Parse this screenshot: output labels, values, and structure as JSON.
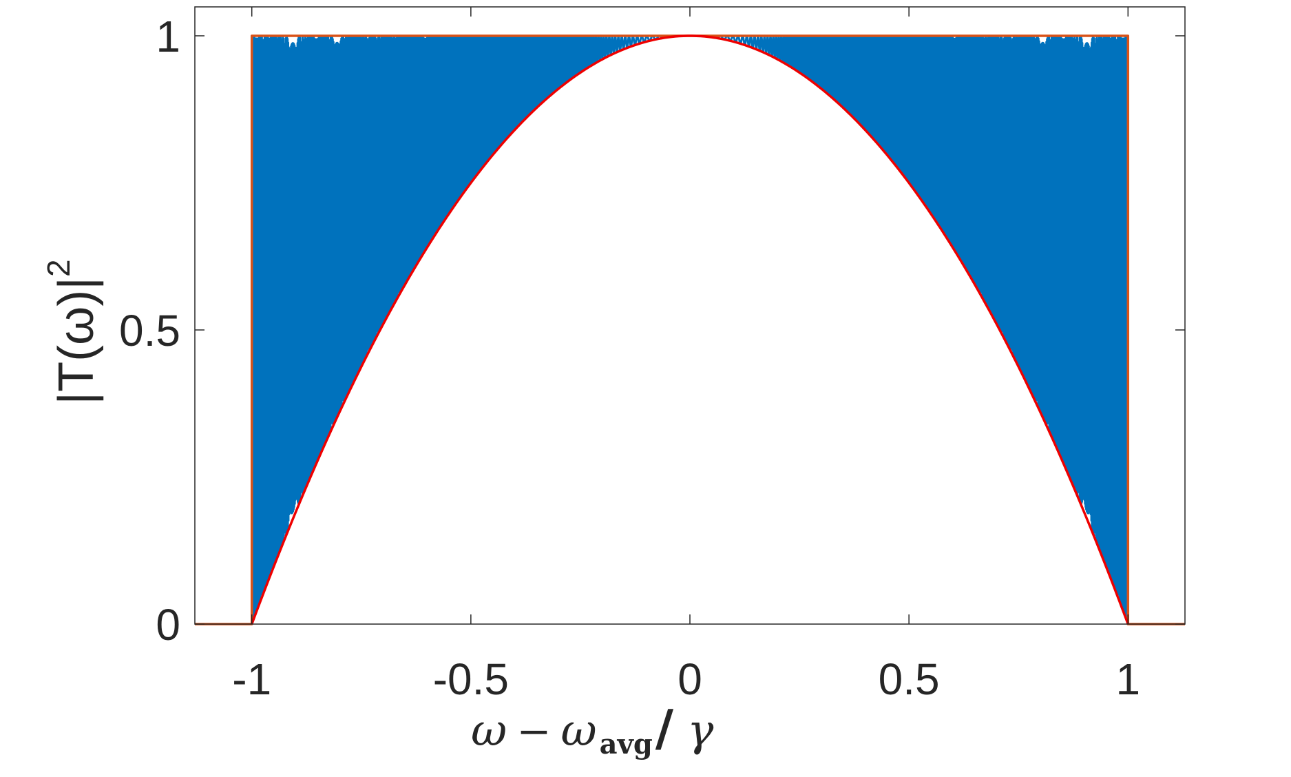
{
  "chart_data": {
    "type": "line",
    "title": "",
    "xlabel": {
      "omega": "ω",
      "minus": "−",
      "omega_sub": "ω",
      "subscript": "avg",
      "slash": "/",
      "gamma": "γ"
    },
    "ylabel": "|T(ω)|",
    "ylabel_exponent": "2",
    "xlim": [
      -1.13,
      1.13
    ],
    "ylim": [
      0,
      1.0
    ],
    "x_ticks": [
      {
        "value": -1,
        "label": "-1"
      },
      {
        "value": -0.5,
        "label": "-0.5"
      },
      {
        "value": 0,
        "label": "0"
      },
      {
        "value": 0.5,
        "label": "0.5"
      },
      {
        "value": 1,
        "label": "1"
      }
    ],
    "y_ticks": [
      {
        "value": 0,
        "label": "0"
      },
      {
        "value": 0.5,
        "label": "0.5"
      },
      {
        "value": 1,
        "label": "1"
      }
    ],
    "grid": false,
    "series": [
      {
        "color": "#0072BD",
        "description_of_shape": "fast oscillation between upper bound 1 and lower envelope 1 - x^2 for |x| < 1; 0 outside",
        "envelope_lower": "1 - x^2",
        "envelope_upper": 1,
        "oscillation_phase_coeff": 1300,
        "support": [
          -1,
          1
        ]
      },
      {
        "color": "#EE0000",
        "description_of_shape": "lower envelope 1 - x^2 on [-1, 1]",
        "support": [
          -1,
          1
        ]
      },
      {
        "color": "#D95319",
        "description_of_shape": "box: 1 on [-1, 1], 0 outside",
        "support": [
          -1,
          1
        ],
        "value_inside": 1,
        "value_outside": 0
      }
    ],
    "colors": {
      "axes": "#262626",
      "oscillating": "#0072BD",
      "envelope": "#EE0000",
      "box": "#D95319"
    }
  }
}
